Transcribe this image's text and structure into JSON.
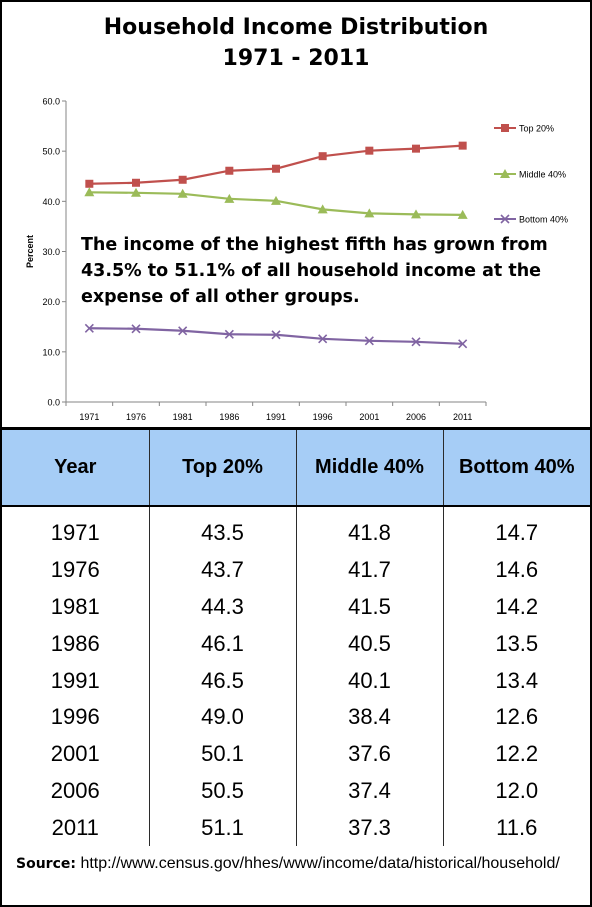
{
  "chart_data": {
    "type": "line",
    "title": "Household Income Distribution",
    "subtitle": "1971 - 2011",
    "ylabel": "Percent",
    "xlabel": "",
    "x": [
      "1971",
      "1976",
      "1981",
      "1986",
      "1991",
      "1996",
      "2001",
      "2006",
      "2011"
    ],
    "ylim": [
      0,
      60
    ],
    "yticks": [
      "0.0",
      "10.0",
      "20.0",
      "30.0",
      "40.0",
      "50.0",
      "60.0"
    ],
    "grid": false,
    "legend_position": "right",
    "series": [
      {
        "name": "Top 20%",
        "values": [
          43.5,
          43.7,
          44.3,
          46.1,
          46.5,
          49.0,
          50.1,
          50.5,
          51.1
        ],
        "color": "#c0504d",
        "marker": "square"
      },
      {
        "name": "Middle 40%",
        "values": [
          41.8,
          41.7,
          41.5,
          40.5,
          40.1,
          38.4,
          37.6,
          37.4,
          37.3
        ],
        "color": "#9bbb59",
        "marker": "triangle"
      },
      {
        "name": "Bottom 40%",
        "values": [
          14.7,
          14.6,
          14.2,
          13.5,
          13.4,
          12.6,
          12.2,
          12.0,
          11.6
        ],
        "color": "#8064a2",
        "marker": "x"
      }
    ],
    "annotation": "The income of the highest fifth  has grown from 43.5% to 51.1% of all household income at the expense of all other groups."
  },
  "table": {
    "headers": [
      "Year",
      "Top 20%",
      "Middle 40%",
      "Bottom 40%"
    ],
    "rows": [
      [
        "1971",
        "43.5",
        "41.8",
        "14.7"
      ],
      [
        "1976",
        "43.7",
        "41.7",
        "14.6"
      ],
      [
        "1981",
        "44.3",
        "41.5",
        "14.2"
      ],
      [
        "1986",
        "46.1",
        "40.5",
        "13.5"
      ],
      [
        "1991",
        "46.5",
        "40.1",
        "13.4"
      ],
      [
        "1996",
        "49.0",
        "38.4",
        "12.6"
      ],
      [
        "2001",
        "50.1",
        "37.6",
        "12.2"
      ],
      [
        "2006",
        "50.5",
        "37.4",
        "12.0"
      ],
      [
        "2011",
        "51.1",
        "37.3",
        "11.6"
      ]
    ],
    "header_color": "#a6cdf6"
  },
  "source": {
    "label": "Source",
    "separator": ":",
    "url": "http://www.census.gov/hhes/www/income/data/historical/household/"
  }
}
